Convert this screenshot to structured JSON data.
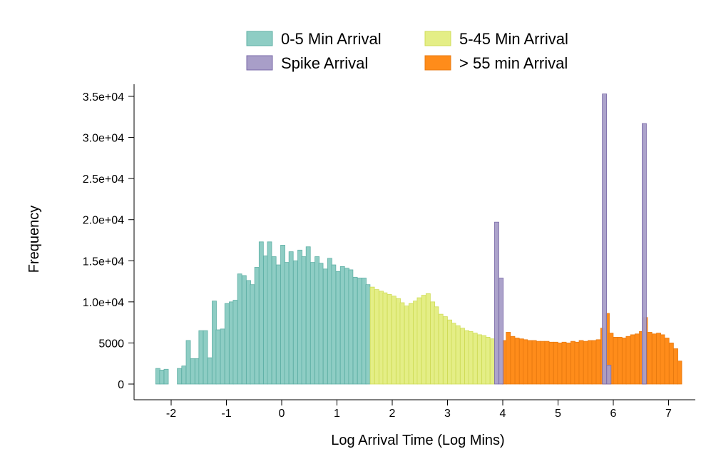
{
  "chart_data": {
    "type": "bar",
    "title": "",
    "xlabel": "Log Arrival Time (Log Mins)",
    "ylabel": "Frequency",
    "xlim": [
      -2.38,
      7.38
    ],
    "ylim": [
      0,
      36000
    ],
    "xticks": [
      -2,
      -1,
      0,
      1,
      2,
      3,
      4,
      5,
      6,
      7
    ],
    "xtick_labels": [
      "-2",
      "-1",
      "0",
      "1",
      "2",
      "3",
      "4",
      "5",
      "6",
      "7"
    ],
    "yticks": [
      0,
      5000,
      10000,
      15000,
      20000,
      25000,
      30000,
      35000
    ],
    "ytick_labels": [
      "0",
      "5000",
      "1.0e+04",
      "1.5e+04",
      "2.0e+04",
      "2.5e+04",
      "3.0e+04",
      "3.5e+04"
    ],
    "legend_position": "top",
    "bin_width": 0.0775,
    "series": [
      {
        "name": "0-5 Min Arrival",
        "color": "#8ecdc4",
        "edge": "#5fb0a5",
        "bins": [
          [
            -2.24,
            1900
          ],
          [
            -2.17,
            1700
          ],
          [
            -2.09,
            1800
          ],
          [
            -1.85,
            1900
          ],
          [
            -1.77,
            2200
          ],
          [
            -1.69,
            5300
          ],
          [
            -1.61,
            3100
          ],
          [
            -1.53,
            3100
          ],
          [
            -1.46,
            6500
          ],
          [
            -1.38,
            6500
          ],
          [
            -1.3,
            3200
          ],
          [
            -1.22,
            10100
          ],
          [
            -1.15,
            6600
          ],
          [
            -1.07,
            6700
          ],
          [
            -0.99,
            9800
          ],
          [
            -0.91,
            10000
          ],
          [
            -0.84,
            10200
          ],
          [
            -0.76,
            13400
          ],
          [
            -0.68,
            13200
          ],
          [
            -0.6,
            12600
          ],
          [
            -0.53,
            12100
          ],
          [
            -0.45,
            14200
          ],
          [
            -0.37,
            17300
          ],
          [
            -0.29,
            15600
          ],
          [
            -0.22,
            17300
          ],
          [
            -0.14,
            15500
          ],
          [
            -0.06,
            14500
          ],
          [
            0.02,
            16900
          ],
          [
            0.09,
            14800
          ],
          [
            0.17,
            16100
          ],
          [
            0.25,
            15000
          ],
          [
            0.33,
            16300
          ],
          [
            0.4,
            15500
          ],
          [
            0.48,
            16700
          ],
          [
            0.56,
            14800
          ],
          [
            0.64,
            15500
          ],
          [
            0.71,
            14700
          ],
          [
            0.79,
            14000
          ],
          [
            0.87,
            15300
          ],
          [
            0.94,
            14500
          ],
          [
            1.02,
            13700
          ],
          [
            1.1,
            14300
          ],
          [
            1.18,
            14100
          ],
          [
            1.25,
            13900
          ],
          [
            1.33,
            13000
          ],
          [
            1.41,
            12900
          ],
          [
            1.49,
            12900
          ],
          [
            1.56,
            12100
          ]
        ]
      },
      {
        "name": "5-45 Min Arrival",
        "color": "#e4ee86",
        "edge": "#cfdc58",
        "bins": [
          [
            1.64,
            11800
          ],
          [
            1.72,
            11500
          ],
          [
            1.8,
            11300
          ],
          [
            1.87,
            11100
          ],
          [
            1.95,
            10900
          ],
          [
            2.03,
            10700
          ],
          [
            2.11,
            10400
          ],
          [
            2.18,
            9900
          ],
          [
            2.26,
            9500
          ],
          [
            2.34,
            9800
          ],
          [
            2.42,
            10100
          ],
          [
            2.49,
            10500
          ],
          [
            2.57,
            10800
          ],
          [
            2.65,
            11000
          ],
          [
            2.73,
            10000
          ],
          [
            2.8,
            9400
          ],
          [
            2.88,
            8500
          ],
          [
            2.96,
            8200
          ],
          [
            3.04,
            7800
          ],
          [
            3.11,
            7400
          ],
          [
            3.19,
            7100
          ],
          [
            3.27,
            6800
          ],
          [
            3.35,
            6500
          ],
          [
            3.42,
            6400
          ],
          [
            3.5,
            6200
          ],
          [
            3.58,
            6000
          ],
          [
            3.66,
            5900
          ],
          [
            3.73,
            5700
          ],
          [
            3.81,
            5500
          ]
        ]
      },
      {
        "name": "> 55 min Arrival",
        "color": "#ff8c1a",
        "edge": "#e87a10",
        "bins": [
          [
            4.03,
            5300
          ],
          [
            4.1,
            6300
          ],
          [
            4.18,
            5800
          ],
          [
            4.26,
            5600
          ],
          [
            4.34,
            5500
          ],
          [
            4.41,
            5400
          ],
          [
            4.49,
            5300
          ],
          [
            4.57,
            5300
          ],
          [
            4.65,
            5200
          ],
          [
            4.72,
            5200
          ],
          [
            4.8,
            5200
          ],
          [
            4.88,
            5100
          ],
          [
            4.96,
            5100
          ],
          [
            5.03,
            5000
          ],
          [
            5.11,
            5100
          ],
          [
            5.19,
            5000
          ],
          [
            5.27,
            5200
          ],
          [
            5.34,
            5100
          ],
          [
            5.42,
            5300
          ],
          [
            5.5,
            5200
          ],
          [
            5.58,
            5300
          ],
          [
            5.65,
            5300
          ],
          [
            5.73,
            5400
          ],
          [
            5.81,
            6800
          ],
          [
            5.89,
            8600
          ],
          [
            5.96,
            6200
          ],
          [
            6.04,
            5700
          ],
          [
            6.12,
            5700
          ],
          [
            6.2,
            5600
          ],
          [
            6.27,
            5800
          ],
          [
            6.35,
            6000
          ],
          [
            6.43,
            6100
          ],
          [
            6.51,
            6400
          ],
          [
            6.58,
            8100
          ],
          [
            6.66,
            6300
          ],
          [
            6.74,
            6100
          ],
          [
            6.82,
            6200
          ],
          [
            6.89,
            6000
          ],
          [
            6.97,
            5600
          ],
          [
            7.05,
            5000
          ],
          [
            7.13,
            4300
          ],
          [
            7.2,
            2800
          ]
        ]
      },
      {
        "name": "Spike Arrival",
        "color": "#a89ec8",
        "edge": "#7a6aa8",
        "bins": [
          [
            3.89,
            19700
          ],
          [
            3.97,
            12900
          ],
          [
            5.84,
            35300
          ],
          [
            5.92,
            2300
          ],
          [
            6.56,
            31700
          ]
        ]
      }
    ]
  },
  "legend": {
    "items": [
      {
        "label": "0-5 Min Arrival",
        "color": "#8ecdc4",
        "edge": "#5fb0a5"
      },
      {
        "label": "5-45 Min Arrival",
        "color": "#e4ee86",
        "edge": "#cfdc58"
      },
      {
        "label": "Spike Arrival",
        "color": "#a89ec8",
        "edge": "#7a6aa8"
      },
      {
        "label": "> 55 min Arrival",
        "color": "#ff8c1a",
        "edge": "#e87a10"
      }
    ]
  }
}
